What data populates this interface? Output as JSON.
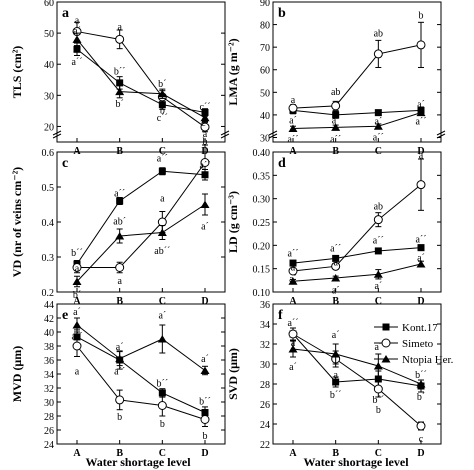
{
  "shared": {
    "categories": [
      "A",
      "B",
      "C",
      "D"
    ],
    "xlabel": "Water shortage level",
    "legend": [
      "Kont.17",
      "Simeto",
      "Ntopia Her."
    ]
  },
  "chart_data": [
    {
      "type": "line",
      "panel": "a",
      "ylabel": "TLS (cm²)",
      "ylim": [
        15,
        60
      ],
      "yticks": [
        20,
        30,
        40,
        50,
        60
      ],
      "axis_break": true,
      "categories": [
        "A",
        "B",
        "C",
        "D"
      ],
      "series": [
        {
          "name": "Kont.17",
          "values": [
            44.8,
            34.0,
            27.0,
            24.5
          ],
          "errors": [
            2.0,
            2.0,
            1.5,
            1.2
          ]
        },
        {
          "name": "Simeto",
          "values": [
            50.5,
            48.0,
            29.5,
            19.8
          ],
          "errors": [
            3.0,
            3.0,
            2.0,
            1.5
          ]
        },
        {
          "name": "Ntopia Her.",
          "values": [
            48.0,
            31.2,
            30.5,
            22.8
          ],
          "errors": [
            2.0,
            2.0,
            1.5,
            1.2
          ]
        }
      ],
      "annotations": [
        {
          "cat": "A",
          "text": "a",
          "value": 54.3
        },
        {
          "cat": "A",
          "text": "a´",
          "value": 51.0
        },
        {
          "cat": "A",
          "text": "a´´",
          "value": 41.0
        },
        {
          "cat": "B",
          "text": "a",
          "value": 52.3
        },
        {
          "cat": "B",
          "text": "b´´",
          "value": 38.0
        },
        {
          "cat": "B",
          "text": "b´",
          "value": 27.5
        },
        {
          "cat": "C",
          "text": "b´",
          "value": 34.0
        },
        {
          "cat": "C",
          "text": "b",
          "value": 25.5
        },
        {
          "cat": "C",
          "text": "c´´",
          "value": 23.0
        },
        {
          "cat": "D",
          "text": "c´´",
          "value": 26.5
        },
        {
          "cat": "D",
          "text": "c´",
          "value": 21.5
        },
        {
          "cat": "D",
          "text": "b",
          "value": 15.5
        }
      ]
    },
    {
      "type": "line",
      "panel": "b",
      "ylabel": "LMA (g m⁻²)",
      "ylim": [
        28,
        90
      ],
      "yticks": [
        30,
        40,
        50,
        60,
        70,
        80,
        90
      ],
      "axis_break": true,
      "categories": [
        "A",
        "B",
        "C",
        "D"
      ],
      "series": [
        {
          "name": "Kont.17",
          "values": [
            42.0,
            40.0,
            41.0,
            42.0
          ],
          "errors": [
            1.5,
            1.5,
            1.0,
            1.5
          ]
        },
        {
          "name": "Simeto",
          "values": [
            43.0,
            44.0,
            67.0,
            71.0
          ],
          "errors": [
            1.5,
            2.0,
            6.0,
            10.0
          ]
        },
        {
          "name": "Ntopia Her.",
          "values": [
            34.0,
            34.5,
            35.0,
            41.0
          ],
          "errors": [
            1.0,
            1.0,
            1.0,
            1.0
          ]
        }
      ],
      "annotations": [
        {
          "cat": "A",
          "text": "a",
          "value": 47.0
        },
        {
          "cat": "A",
          "text": "a´",
          "value": 38.0
        },
        {
          "cat": "A",
          "text": "a´´",
          "value": 29.5
        },
        {
          "cat": "B",
          "text": "ab",
          "value": 50.5
        },
        {
          "cat": "B",
          "text": "a´",
          "value": 38.0
        },
        {
          "cat": "B",
          "text": "a´´",
          "value": 29.5
        },
        {
          "cat": "C",
          "text": "ab",
          "value": 76.5
        },
        {
          "cat": "C",
          "text": "a´",
          "value": 37.5
        },
        {
          "cat": "C",
          "text": "a´´",
          "value": 30.5
        },
        {
          "cat": "D",
          "text": "b",
          "value": 84.5
        },
        {
          "cat": "D",
          "text": "a´",
          "value": 45.0
        },
        {
          "cat": "D",
          "text": "a´´",
          "value": 37.5
        }
      ]
    },
    {
      "type": "line",
      "panel": "c",
      "ylabel": "VD (nr of veins cm⁻²)",
      "ylim": [
        0.2,
        0.6
      ],
      "yticks": [
        0.2,
        0.3,
        0.4,
        0.5,
        0.6
      ],
      "axis_break": false,
      "categories": [
        "A",
        "B",
        "C",
        "D"
      ],
      "series": [
        {
          "name": "Kont.17",
          "values": [
            0.28,
            0.46,
            0.545,
            0.535
          ],
          "errors": [
            0.01,
            0.01,
            0.01,
            0.015
          ]
        },
        {
          "name": "Simeto",
          "values": [
            0.27,
            0.27,
            0.4,
            0.57
          ],
          "errors": [
            0.015,
            0.015,
            0.03,
            0.05
          ]
        },
        {
          "name": "Ntopia Her.",
          "values": [
            0.23,
            0.36,
            0.37,
            0.45
          ],
          "errors": [
            0.015,
            0.02,
            0.02,
            0.03
          ]
        }
      ],
      "annotations": [
        {
          "cat": "A",
          "text": "b´´",
          "value": 0.315
        },
        {
          "cat": "A",
          "text": "a",
          "value": 0.27
        },
        {
          "cat": "A",
          "text": "b´",
          "value": 0.195
        },
        {
          "cat": "B",
          "text": "a´´",
          "value": 0.485
        },
        {
          "cat": "B",
          "text": "ab´",
          "value": 0.405
        },
        {
          "cat": "B",
          "text": "a",
          "value": 0.235
        },
        {
          "cat": "C",
          "text": "a´´",
          "value": 0.585
        },
        {
          "cat": "C",
          "text": "a",
          "value": 0.47
        },
        {
          "cat": "C",
          "text": "ab´´",
          "value": 0.32
        },
        {
          "cat": "D",
          "text": "a",
          "value": 0.655
        },
        {
          "cat": "D",
          "text": "a´´",
          "value": 0.565
        },
        {
          "cat": "D",
          "text": "a´",
          "value": 0.39
        }
      ]
    },
    {
      "type": "line",
      "panel": "d",
      "ylabel": "LD (g cm⁻³)",
      "ylim": [
        0.1,
        0.4
      ],
      "yticks": [
        0.1,
        0.15,
        0.2,
        0.25,
        0.3,
        0.35,
        0.4
      ],
      "axis_break": false,
      "categories": [
        "A",
        "B",
        "C",
        "D"
      ],
      "series": [
        {
          "name": "Kont.17",
          "values": [
            0.162,
            0.172,
            0.188,
            0.195
          ],
          "errors": [
            0.005,
            0.005,
            0.005,
            0.006
          ]
        },
        {
          "name": "Simeto",
          "values": [
            0.145,
            0.155,
            0.255,
            0.33
          ],
          "errors": [
            0.005,
            0.006,
            0.015,
            0.055
          ]
        },
        {
          "name": "Ntopia Her.",
          "values": [
            0.123,
            0.13,
            0.138,
            0.16
          ],
          "errors": [
            0.004,
            0.004,
            0.01,
            0.006
          ]
        }
      ],
      "annotations": [
        {
          "cat": "A",
          "text": "a´´",
          "value": 0.185
        },
        {
          "cat": "A",
          "text": "a",
          "value": 0.155
        },
        {
          "cat": "A",
          "text": "a´",
          "value": 0.13
        },
        {
          "cat": "B",
          "text": "a´´",
          "value": 0.195
        },
        {
          "cat": "B",
          "text": "a",
          "value": 0.165
        },
        {
          "cat": "B",
          "text": "a´",
          "value": 0.105
        },
        {
          "cat": "C",
          "text": "ab",
          "value": 0.285
        },
        {
          "cat": "C",
          "text": "a´´",
          "value": 0.213
        },
        {
          "cat": "C",
          "text": "a´",
          "value": 0.115
        },
        {
          "cat": "D",
          "text": "a",
          "value": 0.395
        },
        {
          "cat": "D",
          "text": "a´´",
          "value": 0.215
        },
        {
          "cat": "D",
          "text": "a´",
          "value": 0.175
        }
      ]
    },
    {
      "type": "line",
      "panel": "e",
      "ylabel": "MVD (μm)",
      "ylim": [
        24,
        44
      ],
      "yticks": [
        24,
        26,
        28,
        30,
        32,
        34,
        36,
        38,
        40,
        42,
        44
      ],
      "axis_break": false,
      "categories": [
        "A",
        "B",
        "C",
        "D"
      ],
      "series": [
        {
          "name": "Kont.17",
          "values": [
            39.3,
            36.0,
            31.3,
            28.5
          ],
          "errors": [
            1.0,
            1.3,
            0.6,
            0.8
          ]
        },
        {
          "name": "Simeto",
          "values": [
            38.0,
            30.3,
            29.5,
            27.5
          ],
          "errors": [
            1.5,
            1.4,
            1.5,
            1.0
          ]
        },
        {
          "name": "Ntopia Her.",
          "values": [
            41.0,
            36.2,
            39.0,
            34.5
          ],
          "errors": [
            1.0,
            1.0,
            2.0,
            0.6
          ]
        }
      ],
      "annotations": [
        {
          "cat": "A",
          "text": "a´",
          "value": 43.0
        },
        {
          "cat": "A",
          "text": "a´´",
          "value": 39.5
        },
        {
          "cat": "A",
          "text": "a",
          "value": 34.5
        },
        {
          "cat": "B",
          "text": "a´",
          "value": 38.0
        },
        {
          "cat": "B",
          "text": "a´´",
          "value": 34.5
        },
        {
          "cat": "B",
          "text": "b",
          "value": 28.0
        },
        {
          "cat": "C",
          "text": "a´",
          "value": 42.5
        },
        {
          "cat": "C",
          "text": "b´´",
          "value": 32.8
        },
        {
          "cat": "C",
          "text": "b",
          "value": 27.0
        },
        {
          "cat": "D",
          "text": "a´",
          "value": 36.3
        },
        {
          "cat": "D",
          "text": "b´´",
          "value": 30.2
        },
        {
          "cat": "D",
          "text": "b",
          "value": 25.3
        }
      ]
    },
    {
      "type": "line",
      "panel": "f",
      "ylabel": "SVD (μm)",
      "ylim": [
        22,
        36
      ],
      "yticks": [
        22,
        24,
        26,
        28,
        30,
        32,
        34,
        36
      ],
      "axis_break": false,
      "categories": [
        "A",
        "B",
        "C",
        "D"
      ],
      "series": [
        {
          "name": "Kont.17",
          "values": [
            33.0,
            28.2,
            28.5,
            27.8
          ],
          "errors": [
            0.6,
            0.5,
            0.8,
            0.6
          ]
        },
        {
          "name": "Simeto",
          "values": [
            33.0,
            30.5,
            27.5,
            23.8
          ],
          "errors": [
            0.6,
            0.8,
            0.8,
            0.4
          ]
        },
        {
          "name": "Ntopia Her.",
          "values": [
            31.5,
            31.0,
            29.8,
            28.0
          ],
          "errors": [
            0.8,
            1.0,
            1.2,
            0.4
          ]
        }
      ],
      "annotations": [
        {
          "cat": "A",
          "text": "a´´",
          "value": 34.2
        },
        {
          "cat": "A",
          "text": "a",
          "value": 32.2
        },
        {
          "cat": "A",
          "text": "a´",
          "value": 29.8
        },
        {
          "cat": "B",
          "text": "a´",
          "value": 33.0
        },
        {
          "cat": "B",
          "text": "a",
          "value": 29.0
        },
        {
          "cat": "B",
          "text": "b´´",
          "value": 27.0
        },
        {
          "cat": "C",
          "text": "a´",
          "value": 31.8
        },
        {
          "cat": "C",
          "text": "b´´",
          "value": 26.5
        },
        {
          "cat": "C",
          "text": "b",
          "value": 25.5
        },
        {
          "cat": "D",
          "text": "b´´",
          "value": 29.0
        },
        {
          "cat": "D",
          "text": "b´",
          "value": 26.8
        },
        {
          "cat": "D",
          "text": "c",
          "value": 22.6
        }
      ]
    }
  ]
}
